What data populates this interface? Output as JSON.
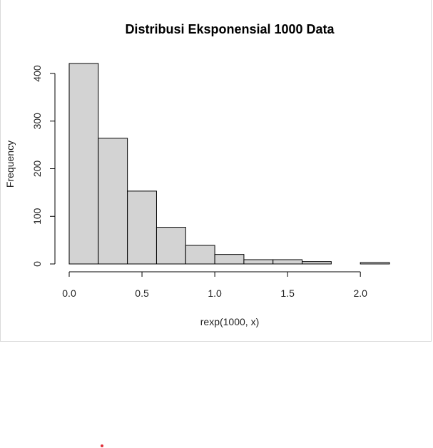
{
  "chart_data": {
    "type": "bar",
    "title": "Distribusi Eksponensial 1000 Data",
    "xlabel": "rexp(1000, x)",
    "ylabel": "Frequency",
    "bins": [
      {
        "x0": 0.0,
        "x1": 0.2,
        "count": 421
      },
      {
        "x0": 0.2,
        "x1": 0.4,
        "count": 264
      },
      {
        "x0": 0.4,
        "x1": 0.6,
        "count": 153
      },
      {
        "x0": 0.6,
        "x1": 0.8,
        "count": 77
      },
      {
        "x0": 0.8,
        "x1": 1.0,
        "count": 39
      },
      {
        "x0": 1.0,
        "x1": 1.2,
        "count": 20
      },
      {
        "x0": 1.2,
        "x1": 1.4,
        "count": 9
      },
      {
        "x0": 1.4,
        "x1": 1.6,
        "count": 9
      },
      {
        "x0": 1.6,
        "x1": 1.8,
        "count": 5
      },
      {
        "x0": 1.8,
        "x1": 2.0,
        "count": 0
      },
      {
        "x0": 2.0,
        "x1": 2.2,
        "count": 3
      }
    ],
    "xticks": [
      "0.0",
      "0.5",
      "1.0",
      "1.5",
      "2.0"
    ],
    "xtick_values": [
      0.0,
      0.5,
      1.0,
      1.5,
      2.0
    ],
    "yticks": [
      "0",
      "100",
      "200",
      "300",
      "400"
    ],
    "ytick_values": [
      0,
      100,
      200,
      300,
      400
    ],
    "xlim": [
      0.0,
      2.2
    ],
    "ylim": [
      0,
      421
    ],
    "bar_fill": "#d3d3d3",
    "bar_stroke": "#000000",
    "grid": false,
    "legend": "none"
  },
  "marker_color": "#e0303a"
}
